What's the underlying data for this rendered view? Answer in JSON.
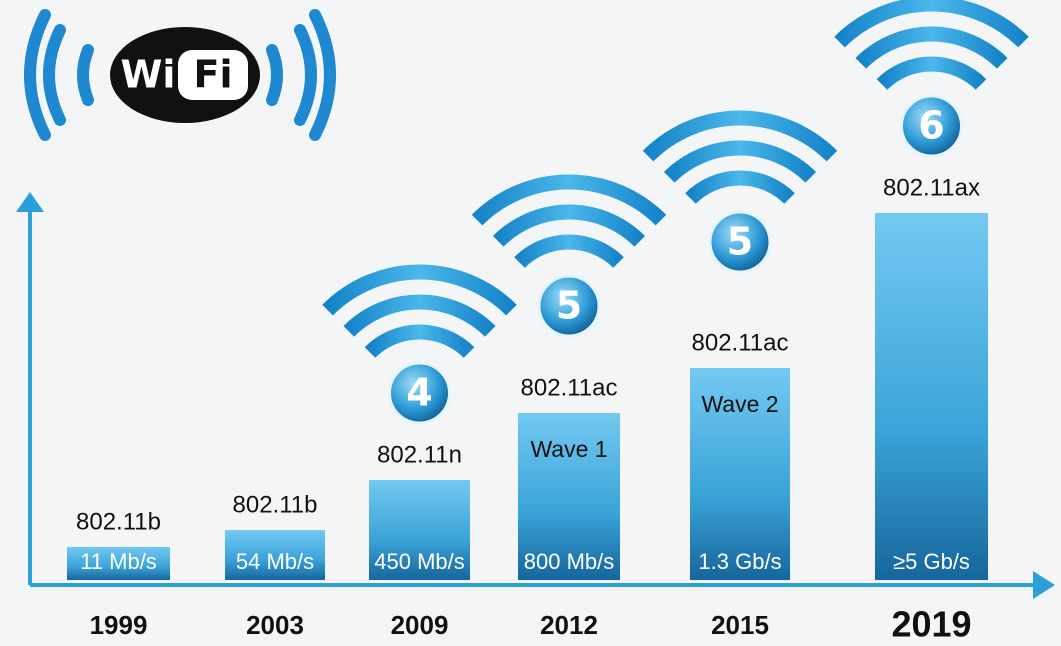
{
  "logo": {
    "part1": "Wi",
    "part2": "Fi"
  },
  "items": [
    {
      "year": "1999",
      "standard": "802.11b",
      "speed": "11 Mb/s"
    },
    {
      "year": "2003",
      "standard": "802.11b",
      "speed": "54 Mb/s"
    },
    {
      "year": "2009",
      "standard": "802.11n",
      "speed": "450 Mb/s",
      "generation": "4"
    },
    {
      "year": "2012",
      "standard": "802.11ac",
      "wave": "Wave 1",
      "speed": "800 Mb/s",
      "generation": "5"
    },
    {
      "year": "2015",
      "standard": "802.11ac",
      "wave": "Wave 2",
      "speed": "1.3 Gb/s",
      "generation": "5"
    },
    {
      "year": "2019",
      "standard": "802.11ax",
      "speed": "≥5 Gb/s",
      "generation": "6"
    }
  ]
}
